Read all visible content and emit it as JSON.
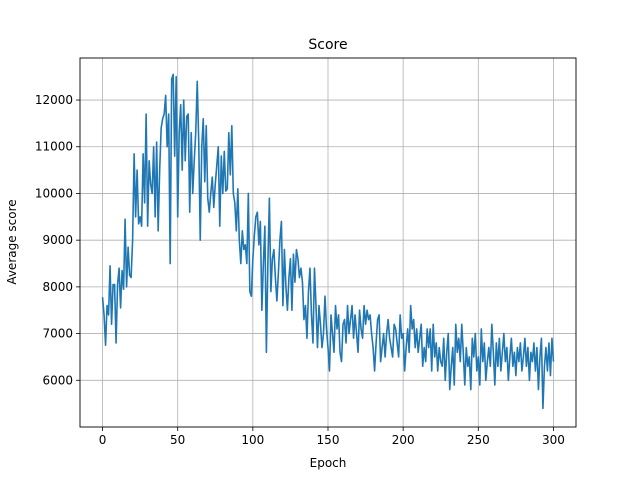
{
  "chart_data": {
    "type": "line",
    "title": "Score",
    "xlabel": "Epoch",
    "ylabel": "Average score",
    "xlim": [
      -15,
      315
    ],
    "ylim": [
      5000,
      12900
    ],
    "xticks": [
      0,
      50,
      100,
      150,
      200,
      250,
      300
    ],
    "yticks": [
      6000,
      7000,
      8000,
      9000,
      10000,
      11000,
      12000
    ],
    "grid": true,
    "line_color": "#1f77b4",
    "series": [
      {
        "values": [
          7780,
          7400,
          6750,
          7600,
          7400,
          8450,
          7200,
          8050,
          8050,
          6800,
          8050,
          8400,
          7550,
          8350,
          7950,
          9450,
          8000,
          8850,
          8250,
          8200,
          9000,
          10850,
          9500,
          10500,
          9350,
          9500,
          9300,
          10850,
          9800,
          11700,
          9300,
          10700,
          10200,
          10000,
          11000,
          9500,
          11100,
          9200,
          10500,
          11400,
          11600,
          11700,
          12100,
          11000,
          11700,
          8500,
          12450,
          12550,
          10800,
          12500,
          9500,
          11300,
          11900,
          10500,
          12000,
          10700,
          11650,
          11700,
          9600,
          11300,
          10000,
          10700,
          11300,
          12400,
          11100,
          9000,
          11000,
          11600,
          10250,
          11450,
          9900,
          9600,
          10000,
          10350,
          9700,
          10200,
          10600,
          11000,
          9300,
          10800,
          10000,
          10900,
          10050,
          10100,
          11300,
          10400,
          11450,
          10000,
          9800,
          9200,
          10100,
          9000,
          8500,
          9200,
          8800,
          8900,
          8500,
          10000,
          7900,
          7800,
          8600,
          9100,
          9500,
          9600,
          8900,
          9400,
          7500,
          8500,
          9300,
          6600,
          8500,
          9900,
          7900,
          8600,
          8800,
          8200,
          7700,
          8300,
          9000,
          9400,
          7600,
          8800,
          8000,
          7500,
          8200,
          8600,
          7500,
          8700,
          8100,
          8800,
          8600,
          8200,
          8400,
          8100,
          7300,
          7600,
          6900,
          7900,
          8400,
          7400,
          6800,
          8400,
          7600,
          6700,
          7600,
          7200,
          6700,
          7000,
          7800,
          7100,
          6700,
          6200,
          7400,
          7000,
          6600,
          7600,
          7100,
          7400,
          6600,
          6400,
          7200,
          7300,
          6800,
          7600,
          7000,
          7300,
          7600,
          6900,
          7400,
          7000,
          6600,
          7500,
          7100,
          6900,
          7600,
          7200,
          7500,
          7300,
          7400,
          7000,
          6700,
          6200,
          6800,
          7300,
          7400,
          6400,
          6700,
          7000,
          6500,
          7000,
          7300,
          6900,
          6700,
          6500,
          7200,
          7100,
          6800,
          6500,
          7400,
          6900,
          7000,
          6200,
          6700,
          7100,
          6600,
          7600,
          7100,
          7300,
          6700,
          7100,
          6600,
          6900,
          7200,
          6300,
          6700,
          6400,
          7100,
          6700,
          7100,
          6200,
          7200,
          6500,
          6800,
          6200,
          6700,
          6400,
          6300,
          6900,
          6000,
          6600,
          7000,
          5800,
          6300,
          6700,
          5900,
          7200,
          6600,
          6900,
          6400,
          7200,
          6600,
          5900,
          6700,
          6300,
          6500,
          5800,
          6900,
          6500,
          7000,
          6200,
          6500,
          5900,
          7100,
          6400,
          6800,
          6000,
          6400,
          6700,
          6300,
          7200,
          6600,
          5900,
          6800,
          6300,
          6900,
          6200,
          6600,
          7000,
          6400,
          6700,
          6000,
          6500,
          6900,
          6300,
          6600,
          6100,
          6700,
          6400,
          6800,
          6200,
          6500,
          6900,
          6300,
          6700,
          6000,
          6600,
          6400,
          6800,
          6200,
          6700,
          5800,
          6500,
          6900,
          5400,
          6300,
          6700,
          6200,
          6800,
          6100,
          6900,
          6400
        ]
      }
    ]
  }
}
